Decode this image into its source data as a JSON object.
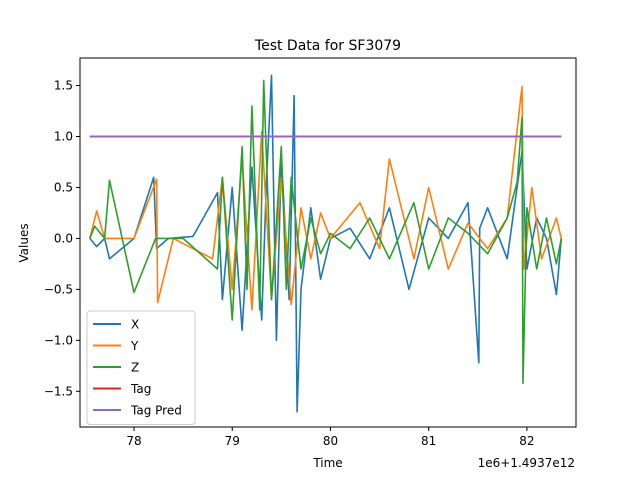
{
  "chart_data": {
    "type": "line",
    "title": "Test Data for SF3079",
    "xlabel": "Time",
    "ylabel": "Values",
    "x_offset_label": "1e6+1.4937e12",
    "xlim": [
      77.45,
      82.5
    ],
    "ylim": [
      -1.85,
      1.77
    ],
    "xticks": [
      78,
      79,
      80,
      81,
      82
    ],
    "xtick_labels": [
      "78",
      "79",
      "80",
      "81",
      "82"
    ],
    "yticks": [
      -1.5,
      -1.0,
      -0.5,
      0.0,
      0.5,
      1.0,
      1.5
    ],
    "ytick_labels": [
      "−1.5",
      "−1.0",
      "−0.5",
      "0.0",
      "0.5",
      "1.0",
      "1.5"
    ],
    "legend_position": "lower left",
    "grid": false,
    "series": [
      {
        "name": "X",
        "color": "#1f77b4",
        "x": [
          77.55,
          77.62,
          77.7,
          77.75,
          78.0,
          78.2,
          78.23,
          78.35,
          78.6,
          78.85,
          78.9,
          79.0,
          79.1,
          79.2,
          79.3,
          79.35,
          79.4,
          79.45,
          79.5,
          79.58,
          79.63,
          79.66,
          79.7,
          79.8,
          79.9,
          80.0,
          80.2,
          80.4,
          80.6,
          80.8,
          81.0,
          81.2,
          81.4,
          81.51,
          81.52,
          81.6,
          81.8,
          81.95,
          82.0,
          82.1,
          82.2,
          82.3,
          82.35
        ],
        "y": [
          0.0,
          -0.08,
          0.0,
          -0.2,
          0.0,
          0.6,
          -0.1,
          0.0,
          0.02,
          0.45,
          -0.6,
          0.5,
          -0.9,
          0.7,
          -0.8,
          0.6,
          1.6,
          -1.0,
          0.8,
          -0.6,
          1.4,
          -1.7,
          -0.5,
          0.3,
          -0.4,
          0.0,
          0.1,
          -0.2,
          0.3,
          -0.5,
          0.2,
          0.0,
          0.35,
          -1.22,
          0.1,
          0.3,
          -0.2,
          0.85,
          -0.3,
          0.2,
          0.0,
          -0.55,
          0.0
        ]
      },
      {
        "name": "Y",
        "color": "#ff7f0e",
        "x": [
          77.55,
          77.62,
          77.7,
          78.0,
          78.23,
          78.24,
          78.4,
          78.8,
          78.9,
          79.0,
          79.1,
          79.2,
          79.3,
          79.4,
          79.5,
          79.6,
          79.7,
          79.8,
          79.9,
          80.0,
          80.3,
          80.5,
          80.6,
          80.85,
          81.0,
          81.2,
          81.4,
          81.6,
          81.8,
          81.95,
          81.97,
          82.05,
          82.15,
          82.3,
          82.35
        ],
        "y": [
          0.0,
          0.27,
          0.0,
          0.0,
          0.58,
          -0.63,
          0.0,
          -0.2,
          0.6,
          -0.5,
          0.8,
          -0.7,
          1.05,
          -0.6,
          0.6,
          -0.65,
          0.3,
          -0.2,
          0.25,
          0.0,
          0.35,
          -0.1,
          0.78,
          -0.2,
          0.5,
          -0.3,
          0.15,
          -0.1,
          0.2,
          1.49,
          -0.3,
          0.5,
          -0.2,
          0.2,
          0.0
        ]
      },
      {
        "name": "Z",
        "color": "#2ca02c",
        "x": [
          77.55,
          77.6,
          77.7,
          77.75,
          78.0,
          78.22,
          78.5,
          78.85,
          78.9,
          79.0,
          79.1,
          79.15,
          79.2,
          79.28,
          79.32,
          79.4,
          79.5,
          79.55,
          79.6,
          79.7,
          79.8,
          79.9,
          80.0,
          80.2,
          80.4,
          80.6,
          80.85,
          81.0,
          81.2,
          81.4,
          81.6,
          81.8,
          81.9,
          81.95,
          81.96,
          82.0,
          82.1,
          82.2,
          82.3,
          82.35
        ],
        "y": [
          0.0,
          0.12,
          0.0,
          0.57,
          -0.53,
          0.0,
          0.0,
          -0.3,
          0.6,
          -0.8,
          0.9,
          -0.5,
          1.3,
          -0.7,
          1.55,
          -0.6,
          0.9,
          -0.5,
          0.6,
          -0.3,
          0.2,
          -0.15,
          0.05,
          -0.1,
          0.2,
          -0.2,
          0.35,
          -0.3,
          0.2,
          0.05,
          -0.15,
          0.2,
          0.55,
          1.19,
          -1.42,
          0.3,
          -0.3,
          0.2,
          -0.25,
          0.0
        ]
      },
      {
        "name": "Tag",
        "color": "#d62728",
        "x": [
          77.55,
          82.35
        ],
        "y": [
          1.0,
          1.0
        ]
      },
      {
        "name": "Tag Pred",
        "color": "#9467bd",
        "x": [
          77.55,
          82.35
        ],
        "y": [
          1.0,
          1.0
        ]
      }
    ]
  }
}
